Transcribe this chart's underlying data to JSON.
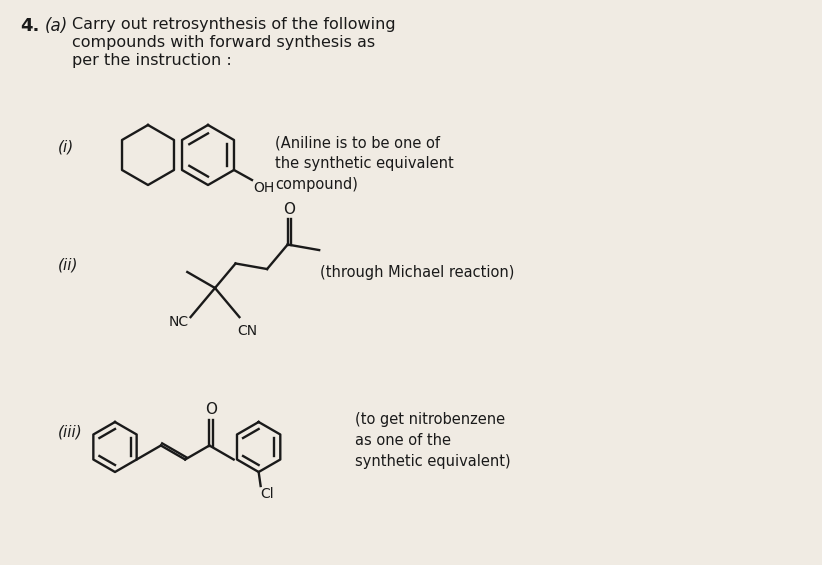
{
  "bg_color": "#f0ebe3",
  "text_color": "#1a1a1a",
  "title_number": "4.",
  "title_letter": "(a)",
  "label_i": "(i)",
  "label_ii": "(ii)",
  "label_iii": "(iii)",
  "note_i": "(Aniline is to be one of\nthe synthetic equivalent\ncompound)",
  "note_ii": "(through Michael reaction)",
  "note_iii": "(to get nitrobenzene\nas one of the\nsynthetic equivalent)",
  "OH_label": "OH",
  "NC_label": "NC",
  "CN_label": "CN",
  "Cl_label": "Cl",
  "O_label_ii": "O",
  "O_label_iii": "O"
}
